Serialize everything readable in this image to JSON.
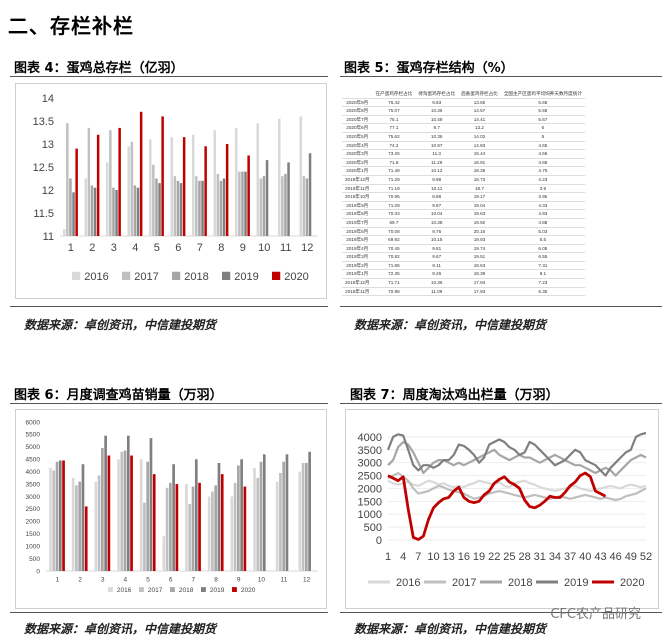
{
  "section_title": "二、存栏补栏",
  "fig4": {
    "title": "图表 4：蛋鸡总存栏（亿羽）",
    "source": "数据来源：卓创资讯，中信建投期货",
    "chart_data": {
      "type": "bar",
      "categories": [
        "1",
        "2",
        "3",
        "4",
        "5",
        "6",
        "7",
        "8",
        "9",
        "10",
        "11",
        "12"
      ],
      "ylim": [
        11,
        14
      ],
      "yticks": [
        "11",
        "11.5",
        "12",
        "12.5",
        "13",
        "13.5",
        "14"
      ],
      "series": [
        {
          "name": "2016",
          "color": "#d9d9d9",
          "values": [
            11.15,
            12.25,
            12.6,
            12.95,
            13.1,
            13.15,
            13.2,
            13.3,
            13.35,
            13.45,
            13.55,
            13.6
          ]
        },
        {
          "name": "2017",
          "color": "#c0c0c0",
          "values": [
            13.45,
            13.35,
            13.3,
            13.05,
            12.55,
            12.3,
            12.3,
            12.35,
            12.4,
            12.25,
            12.3,
            12.3
          ]
        },
        {
          "name": "2018",
          "color": "#a6a6a6",
          "values": [
            12.25,
            12.1,
            12.05,
            12.1,
            12.25,
            12.2,
            12.2,
            12.2,
            12.4,
            12.3,
            12.35,
            12.25
          ]
        },
        {
          "name": "2019",
          "color": "#7f7f7f",
          "values": [
            11.95,
            12.05,
            12.0,
            12.05,
            12.15,
            12.15,
            12.2,
            12.25,
            12.4,
            12.65,
            12.6,
            12.8
          ]
        },
        {
          "name": "2020",
          "color": "#c00000",
          "values": [
            12.9,
            13.2,
            13.35,
            13.7,
            13.6,
            13.15,
            12.95,
            13.0,
            12.75,
            null,
            null,
            null
          ]
        }
      ]
    }
  },
  "fig5": {
    "title": "图表 5：蛋鸡存栏结构（%）",
    "source": "数据来源：卓创资讯，中信建投期货",
    "table": {
      "headers": [
        "",
        "在产蛋鸡存栏占比",
        "待淘蛋鸡存栏占比",
        "后备蛋鸡存栏占比",
        "全国主产区蛋鸡平均饲养天数月度统计"
      ],
      "rows": [
        [
          "2020年9月",
          "76.42",
          "9.83",
          "13.55",
          "6.65"
        ],
        [
          "2020年8月",
          "75.07",
          "10.36",
          "14.57",
          "5.58"
        ],
        [
          "2020年7月",
          "75.1",
          "10.49",
          "14.41",
          "5.67"
        ],
        [
          "2020年6月",
          "77.1",
          "9.7",
          "13.2",
          "6"
        ],
        [
          "2020年5月",
          "75.62",
          "10.36",
          "14.02",
          "5"
        ],
        [
          "2020年4月",
          "74.2",
          "10.97",
          "14.83",
          "4.65"
        ],
        [
          "2020年3月",
          "73.26",
          "11.3",
          "15.44",
          "4.66"
        ],
        [
          "2020年2月",
          "71.8",
          "11.29",
          "16.91",
          "4.68"
        ],
        [
          "2020年1月",
          "71.49",
          "10.12",
          "18.38",
          "4.76"
        ],
        [
          "2019年12月",
          "71.29",
          "9.98",
          "18.73",
          "4.23"
        ],
        [
          "2019年11月",
          "71.19",
          "10.11",
          "18.7",
          "3.9"
        ],
        [
          "2019年10月",
          "70.95",
          "8.88",
          "19.17",
          "3.95"
        ],
        [
          "2019年9月",
          "71.09",
          "9.87",
          "19.04",
          "4.33"
        ],
        [
          "2019年8月",
          "70.33",
          "10.04",
          "19.63",
          "4.93"
        ],
        [
          "2019年7月",
          "69.7",
          "10.38",
          "19.92",
          "4.88"
        ],
        [
          "2019年6月",
          "70.08",
          "9.76",
          "20.16",
          "5.03"
        ],
        [
          "2019年5月",
          "69.92",
          "10.15",
          "19.93",
          "5.5"
        ],
        [
          "2019年4月",
          "70.45",
          "9.81",
          "19.74",
          "6.05"
        ],
        [
          "2019年3月",
          "70.82",
          "9.67",
          "19.51",
          "6.55"
        ],
        [
          "2019年2月",
          "71.86",
          "9.11",
          "18.63",
          "7.31"
        ],
        [
          "2019年1月",
          "72.35",
          "9.26",
          "18.39",
          "8.1"
        ],
        [
          "2018年12月",
          "71.71",
          "10.36",
          "17.93",
          "7.23"
        ],
        [
          "2018年11月",
          "70.98",
          "11.09",
          "17.93",
          "6.35"
        ]
      ]
    }
  },
  "fig6": {
    "title": "图表 6：月度调查鸡苗销量（万羽）",
    "source": "数据来源：卓创资讯，中信建投期货",
    "chart_data": {
      "type": "bar",
      "categories": [
        "1",
        "2",
        "3",
        "4",
        "5",
        "6",
        "7",
        "8",
        "9",
        "10",
        "11",
        "12"
      ],
      "ylim": [
        0,
        6000
      ],
      "yticks": [
        "0",
        "500",
        "1000",
        "1500",
        "2000",
        "2500",
        "3000",
        "3500",
        "4000",
        "4500",
        "5000",
        "5500",
        "6000"
      ],
      "series": [
        {
          "name": "2016",
          "color": "#d9d9d9",
          "values": [
            4150,
            3750,
            3600,
            4500,
            4500,
            1400,
            3500,
            3000,
            3000,
            4150,
            3600,
            4000
          ]
        },
        {
          "name": "2017",
          "color": "#c0c0c0",
          "values": [
            4050,
            3450,
            3850,
            4800,
            2750,
            3350,
            2700,
            3200,
            3550,
            3750,
            3950,
            4350
          ]
        },
        {
          "name": "2018",
          "color": "#a6a6a6",
          "values": [
            4400,
            3600,
            4950,
            4850,
            4400,
            3550,
            3400,
            3450,
            4250,
            4400,
            4400,
            4350
          ]
        },
        {
          "name": "2019",
          "color": "#7f7f7f",
          "values": [
            4450,
            4300,
            5450,
            5450,
            5350,
            4300,
            4500,
            4350,
            4500,
            4700,
            4700,
            4800
          ]
        },
        {
          "name": "2020",
          "color": "#c00000",
          "values": [
            4450,
            2600,
            4650,
            4650,
            3900,
            3500,
            3550,
            3900,
            3400,
            null,
            null,
            null
          ]
        }
      ]
    }
  },
  "fig7": {
    "title": "图表 7：周度淘汰鸡出栏量（万羽）",
    "source": "数据来源：卓创资讯，中信建投期货",
    "watermark": "CFC农产品研究",
    "chart_data": {
      "type": "line",
      "xticks": [
        "1",
        "4",
        "7",
        "10",
        "13",
        "16",
        "19",
        "22",
        "25",
        "28",
        "31",
        "34",
        "37",
        "40",
        "43",
        "46",
        "49",
        "52"
      ],
      "ylim": [
        0,
        4500
      ],
      "yticks": [
        "0",
        "500",
        "1000",
        "1500",
        "2000",
        "2500",
        "3000",
        "3500",
        "4000"
      ],
      "series": [
        {
          "name": "2016",
          "color": "#d9d9d9",
          "width": 2.2,
          "values": [
            2300,
            2200,
            2150,
            2200,
            2250,
            2150,
            2100,
            2200,
            2300,
            2250,
            2150,
            2200,
            2100,
            2050,
            2100,
            2050,
            2150,
            2200,
            2300,
            2250,
            2200,
            2150,
            2250,
            2100,
            2050,
            2200,
            2250,
            2300,
            2200,
            2150,
            2050,
            2000,
            1950,
            1900,
            1950,
            2000,
            2050,
            2100,
            2000,
            1950,
            1900,
            1950,
            2000,
            2050,
            2100,
            2050,
            2000,
            2100,
            2150,
            2100,
            2050,
            2100
          ]
        },
        {
          "name": "2017",
          "color": "#bfbfbf",
          "width": 2.2,
          "values": [
            2400,
            2500,
            2600,
            2450,
            2300,
            2000,
            1800,
            1850,
            1900,
            2000,
            2100,
            2050,
            1950,
            1900,
            1850,
            1800,
            1700,
            1600,
            1650,
            1700,
            1800,
            1850,
            1900,
            1850,
            1800,
            1750,
            1700,
            1650,
            1700,
            1750,
            1700,
            1650,
            1600,
            1650,
            1700,
            1650,
            1600,
            1650,
            1700,
            1750,
            1700,
            1650,
            1600,
            1650,
            1600,
            1550,
            1600,
            1700,
            1750,
            1800,
            1900,
            2000
          ]
        },
        {
          "name": "2018",
          "color": "#a6a6a6",
          "width": 2.2,
          "values": [
            2900,
            3100,
            3600,
            3800,
            3700,
            3400,
            3000,
            2600,
            2800,
            3000,
            3100,
            3100,
            3000,
            2900,
            3000,
            2900,
            3000,
            3100,
            3200,
            3300,
            3400,
            3500,
            3300,
            3200,
            3100,
            3200,
            3300,
            3200,
            3200,
            3100,
            3000,
            3100,
            3200,
            3300,
            3200,
            3100,
            3000,
            2900,
            2900,
            2800,
            2700,
            2600,
            2700,
            2800,
            2700,
            2500,
            2700,
            2900,
            3100,
            3200,
            3300,
            3200
          ]
        },
        {
          "name": "2019",
          "color": "#7f7f7f",
          "width": 2.2,
          "values": [
            3500,
            4000,
            4100,
            4050,
            3500,
            2900,
            2700,
            2900,
            2900,
            2800,
            2900,
            3100,
            3100,
            3300,
            3700,
            3650,
            3500,
            3300,
            3000,
            3200,
            3700,
            3800,
            3900,
            3800,
            3600,
            3500,
            3300,
            3400,
            3800,
            3700,
            3500,
            3300,
            3100,
            2900,
            3000,
            3100,
            3300,
            3500,
            3400,
            3100,
            3000,
            2900,
            2700,
            2500,
            2800,
            3000,
            3200,
            3400,
            3500,
            4000,
            4100,
            4150
          ]
        },
        {
          "name": "2020",
          "color": "#c00000",
          "width": 2.8,
          "values": [
            2500,
            2400,
            2300,
            2450,
            1200,
            100,
            20,
            150,
            800,
            1250,
            1450,
            1600,
            1650,
            1900,
            2050,
            1650,
            1500,
            1450,
            1500,
            1750,
            1900,
            2200,
            2350,
            2450,
            2250,
            2150,
            2000,
            1550,
            1300,
            1250,
            1350,
            1500,
            1700,
            1650,
            1650,
            1850,
            2100,
            2250,
            2500,
            2600,
            2450,
            1900,
            1800,
            1700,
            null,
            null,
            null,
            null,
            null,
            null,
            null,
            null
          ]
        }
      ]
    }
  }
}
